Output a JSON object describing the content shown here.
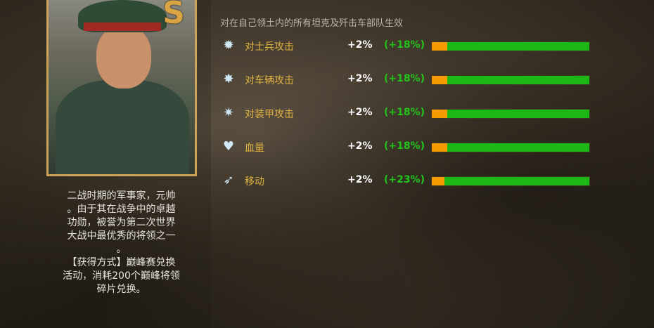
{
  "general": {
    "rank": "S",
    "description_lines": [
      "二战时期的军事家，元帅",
      "。由于其在战争中的卓越",
      "功勋，被誉为第二次世界",
      "大战中最优秀的将领之一",
      "。",
      "【获得方式】巅峰赛兑换",
      "活动，消耗200个巅峰将领",
      "碎片兑换。"
    ]
  },
  "subtitle": "对在自己领土内的所有坦克及歼击车部队生效",
  "colors": {
    "label": "#e2b440",
    "bonus": "#22c419",
    "bar_base": "#f59a00",
    "bar_bonus": "#1cb815"
  },
  "stats": [
    {
      "icon": "infantry-attack-icon",
      "glyph": "✹",
      "label": "对士兵攻击",
      "base": "+2%",
      "bonus": "(+18%)",
      "base_fraction": 0.1
    },
    {
      "icon": "vehicle-attack-icon",
      "glyph": "✸",
      "label": "对车辆攻击",
      "base": "+2%",
      "bonus": "(+18%)",
      "base_fraction": 0.1
    },
    {
      "icon": "armor-attack-icon",
      "glyph": "✷",
      "label": "对装甲攻击",
      "base": "+2%",
      "bonus": "(+18%)",
      "base_fraction": 0.1
    },
    {
      "icon": "health-icon",
      "glyph": "♥",
      "label": "血量",
      "base": "+2%",
      "bonus": "(+18%)",
      "base_fraction": 0.1
    },
    {
      "icon": "movement-icon",
      "glyph": "➶",
      "label": "移动",
      "base": "+2%",
      "bonus": "(+23%)",
      "base_fraction": 0.08
    }
  ]
}
